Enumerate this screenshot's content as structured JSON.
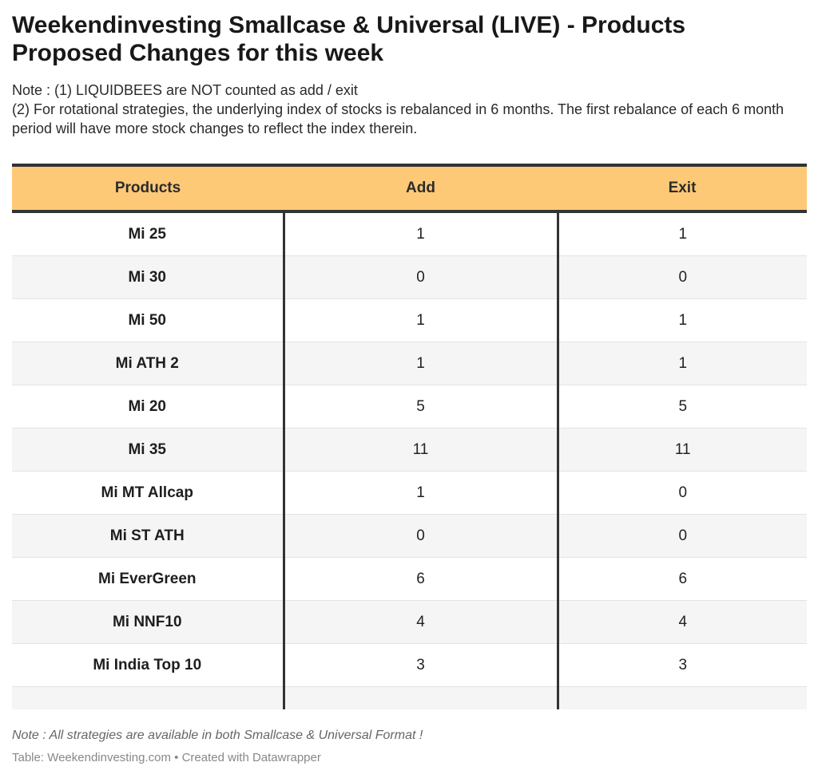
{
  "chart_data": {
    "type": "table",
    "title": "Weekendinvesting Smallcase & Universal (LIVE) - Products Proposed Changes for this week",
    "notes": [
      "Note : (1) LIQUIDBEES are NOT counted as add / exit",
      "(2) For rotational strategies, the underlying index of stocks is rebalanced in 6 months. The first rebalance of each 6 month period will have more stock changes to reflect the index therein."
    ],
    "columns": [
      "Products",
      "Add",
      "Exit"
    ],
    "rows": [
      {
        "product": "Mi 25",
        "add": "1",
        "exit": "1"
      },
      {
        "product": "Mi 30",
        "add": "0",
        "exit": "0"
      },
      {
        "product": "Mi 50",
        "add": "1",
        "exit": "1"
      },
      {
        "product": "Mi ATH 2",
        "add": "1",
        "exit": "1"
      },
      {
        "product": "Mi 20",
        "add": "5",
        "exit": "5"
      },
      {
        "product": "Mi 35",
        "add": "11",
        "exit": "11"
      },
      {
        "product": "Mi MT Allcap",
        "add": "1",
        "exit": "0"
      },
      {
        "product": "Mi ST ATH",
        "add": "0",
        "exit": "0"
      },
      {
        "product": "Mi EverGreen",
        "add": "6",
        "exit": "6"
      },
      {
        "product": "Mi NNF10",
        "add": "4",
        "exit": "4"
      },
      {
        "product": "Mi India Top 10",
        "add": "3",
        "exit": "3"
      }
    ],
    "footnote": "Note : All strategies are available in both Smallcase & Universal Format !",
    "credit": "Table: Weekendinvesting.com • Created with Datawrapper",
    "colors": {
      "header_background": "#fec977",
      "rule": "#333333",
      "stripe": "#f5f5f5"
    }
  }
}
